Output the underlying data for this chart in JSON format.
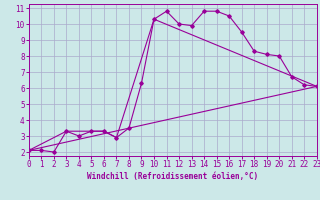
{
  "xlabel": "Windchill (Refroidissement éolien,°C)",
  "ylabel": "",
  "bg_color": "#cce8e8",
  "line_color": "#990099",
  "grid_color": "#aaaacc",
  "xmin": 0,
  "xmax": 23,
  "ymin": 1.75,
  "ymax": 11.25,
  "line1_x": [
    0,
    1,
    2,
    3,
    4,
    5,
    6,
    7,
    8,
    9,
    10,
    11,
    12,
    13,
    14,
    15,
    16,
    17,
    18,
    19,
    20,
    21,
    22,
    23
  ],
  "line1_y": [
    2.1,
    2.1,
    2.0,
    3.3,
    3.0,
    3.3,
    3.3,
    2.9,
    3.5,
    6.3,
    10.3,
    10.8,
    10.0,
    9.9,
    10.8,
    10.8,
    10.5,
    9.5,
    8.3,
    8.1,
    8.0,
    6.7,
    6.2,
    6.1
  ],
  "line2_x": [
    0,
    3,
    5,
    6,
    7,
    10,
    23
  ],
  "line2_y": [
    2.1,
    3.3,
    3.3,
    3.3,
    2.9,
    10.3,
    6.1
  ],
  "line3_x": [
    0,
    23
  ],
  "line3_y": [
    2.1,
    6.1
  ],
  "xticks": [
    0,
    1,
    2,
    3,
    4,
    5,
    6,
    7,
    8,
    9,
    10,
    11,
    12,
    13,
    14,
    15,
    16,
    17,
    18,
    19,
    20,
    21,
    22,
    23
  ],
  "yticks": [
    2,
    3,
    4,
    5,
    6,
    7,
    8,
    9,
    10,
    11
  ],
  "tick_fontsize": 5.5,
  "xlabel_fontsize": 5.5
}
